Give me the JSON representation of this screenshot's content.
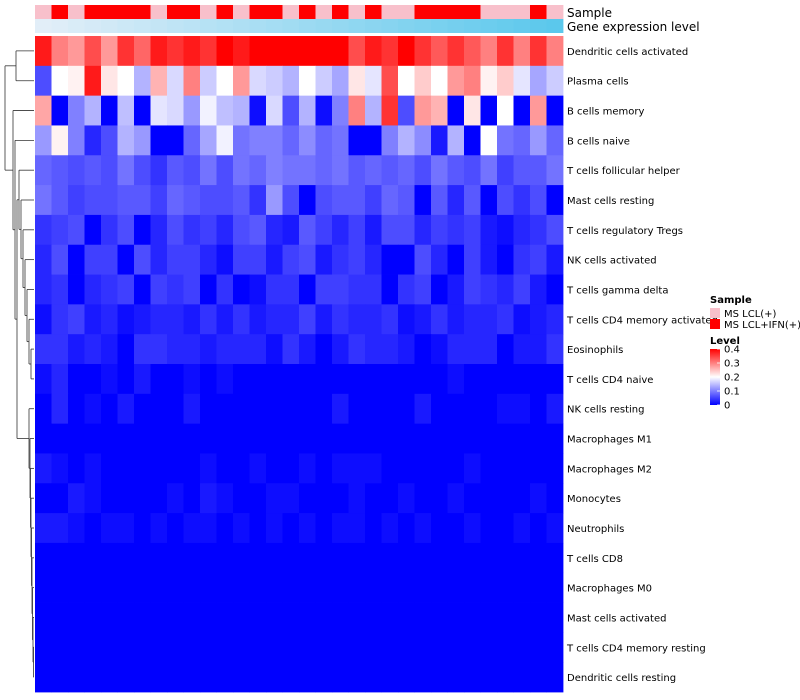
{
  "chart_data": {
    "type": "heatmap",
    "title": "",
    "annotation_tracks": [
      {
        "name": "Sample"
      },
      {
        "name": "Gene expression level"
      }
    ],
    "rows": [
      "Dendritic cells activated",
      "Plasma cells",
      "B cells memory",
      "B cells naive",
      "T cells follicular helper",
      "Mast cells resting",
      "T cells regulatory  Tregs",
      "NK cells activated",
      "T cells gamma delta",
      "T cells CD4 memory activated",
      "Eosinophils",
      "T cells CD4 naive",
      "NK cells resting",
      "Macrophages M1",
      "Macrophages M2",
      "Monocytes",
      "Neutrophils",
      "T cells CD8",
      "Macrophages M0",
      "Mast cells activated",
      "T cells CD4 memory resting",
      "Dendritic cells resting"
    ],
    "sample_groups": [
      0,
      1,
      0,
      1,
      1,
      1,
      1,
      0,
      1,
      1,
      0,
      1,
      0,
      1,
      1,
      0,
      1,
      0,
      1,
      0,
      1,
      0,
      0,
      1,
      1,
      1,
      1,
      0,
      0,
      0,
      1,
      0
    ],
    "values": [
      [
        0.38,
        0.3,
        0.28,
        0.34,
        0.28,
        0.36,
        0.32,
        0.38,
        0.36,
        0.38,
        0.36,
        0.4,
        0.38,
        0.4,
        0.4,
        0.4,
        0.4,
        0.4,
        0.4,
        0.34,
        0.38,
        0.36,
        0.4,
        0.36,
        0.33,
        0.36,
        0.33,
        0.3,
        0.36,
        0.3,
        0.36,
        0.3
      ],
      [
        0.06,
        0.2,
        0.21,
        0.38,
        0.22,
        0.2,
        0.14,
        0.26,
        0.17,
        0.3,
        0.16,
        0.2,
        0.28,
        0.17,
        0.16,
        0.14,
        0.2,
        0.16,
        0.13,
        0.22,
        0.18,
        0.34,
        0.2,
        0.24,
        0.2,
        0.28,
        0.3,
        0.21,
        0.24,
        0.18,
        0.13,
        0.16
      ],
      [
        0.27,
        0.0,
        0.1,
        0.14,
        0.0,
        0.15,
        0.0,
        0.18,
        0.17,
        0.12,
        0.19,
        0.15,
        0.14,
        0.01,
        0.17,
        0.06,
        0.14,
        0.01,
        0.1,
        0.3,
        0.14,
        0.36,
        0.06,
        0.28,
        0.26,
        0.0,
        0.22,
        0.0,
        0.2,
        0.0,
        0.28,
        0.0
      ],
      [
        0.12,
        0.21,
        0.1,
        0.03,
        0.06,
        0.14,
        0.12,
        0.0,
        0.0,
        0.08,
        0.13,
        0.19,
        0.09,
        0.1,
        0.1,
        0.08,
        0.11,
        0.08,
        0.09,
        0.0,
        0.0,
        0.1,
        0.14,
        0.11,
        0.02,
        0.14,
        0.0,
        0.2,
        0.09,
        0.08,
        0.12,
        0.08
      ],
      [
        0.08,
        0.07,
        0.06,
        0.07,
        0.06,
        0.09,
        0.06,
        0.04,
        0.07,
        0.06,
        0.09,
        0.06,
        0.09,
        0.08,
        0.1,
        0.09,
        0.09,
        0.08,
        0.09,
        0.07,
        0.08,
        0.07,
        0.08,
        0.06,
        0.09,
        0.07,
        0.06,
        0.09,
        0.05,
        0.07,
        0.07,
        0.09
      ],
      [
        0.09,
        0.07,
        0.05,
        0.06,
        0.06,
        0.07,
        0.07,
        0.05,
        0.08,
        0.07,
        0.06,
        0.06,
        0.07,
        0.04,
        0.12,
        0.06,
        0.0,
        0.06,
        0.07,
        0.07,
        0.05,
        0.08,
        0.07,
        0.0,
        0.07,
        0.03,
        0.07,
        0.0,
        0.06,
        0.04,
        0.06,
        0.0
      ],
      [
        0.04,
        0.05,
        0.06,
        0.0,
        0.04,
        0.06,
        0.0,
        0.03,
        0.06,
        0.04,
        0.05,
        0.03,
        0.06,
        0.07,
        0.03,
        0.02,
        0.07,
        0.05,
        0.03,
        0.05,
        0.02,
        0.06,
        0.06,
        0.03,
        0.05,
        0.04,
        0.05,
        0.02,
        0.01,
        0.03,
        0.04,
        0.06
      ],
      [
        0.03,
        0.06,
        0.0,
        0.05,
        0.05,
        0.0,
        0.06,
        0.03,
        0.05,
        0.05,
        0.03,
        0.01,
        0.05,
        0.05,
        0.02,
        0.05,
        0.06,
        0.02,
        0.04,
        0.05,
        0.03,
        0.0,
        0.0,
        0.06,
        0.03,
        0.0,
        0.05,
        0.02,
        0.0,
        0.04,
        0.05,
        0.02
      ],
      [
        0.03,
        0.04,
        0.0,
        0.03,
        0.04,
        0.05,
        0.0,
        0.05,
        0.04,
        0.05,
        0.0,
        0.04,
        0.0,
        0.01,
        0.04,
        0.04,
        0.0,
        0.05,
        0.05,
        0.04,
        0.04,
        0.0,
        0.04,
        0.05,
        0.0,
        0.02,
        0.05,
        0.04,
        0.03,
        0.05,
        0.02,
        0.0
      ],
      [
        0.01,
        0.04,
        0.05,
        0.02,
        0.03,
        0.01,
        0.02,
        0.03,
        0.03,
        0.02,
        0.04,
        0.02,
        0.04,
        0.02,
        0.03,
        0.03,
        0.05,
        0.02,
        0.04,
        0.03,
        0.03,
        0.04,
        0.01,
        0.02,
        0.04,
        0.02,
        0.03,
        0.03,
        0.04,
        0.01,
        0.02,
        0.03
      ],
      [
        0.04,
        0.04,
        0.02,
        0.03,
        0.02,
        0.0,
        0.04,
        0.04,
        0.03,
        0.03,
        0.02,
        0.03,
        0.03,
        0.03,
        0.01,
        0.04,
        0.02,
        0.0,
        0.02,
        0.04,
        0.03,
        0.03,
        0.02,
        0.0,
        0.01,
        0.03,
        0.03,
        0.03,
        0.0,
        0.02,
        0.02,
        0.04
      ],
      [
        0.01,
        0.03,
        0.0,
        0.0,
        0.01,
        0.0,
        0.02,
        0.0,
        0.0,
        0.01,
        0.0,
        0.01,
        0.0,
        0.0,
        0.0,
        0.0,
        0.0,
        0.0,
        0.0,
        0.0,
        0.0,
        0.0,
        0.0,
        0.0,
        0.0,
        0.01,
        0.0,
        0.0,
        0.0,
        0.0,
        0.0,
        0.0
      ],
      [
        0.0,
        0.03,
        0.0,
        0.01,
        0.0,
        0.02,
        0.0,
        0.0,
        0.0,
        0.02,
        0.0,
        0.0,
        0.0,
        0.0,
        0.0,
        0.0,
        0.0,
        0.0,
        0.02,
        0.0,
        0.0,
        0.0,
        0.0,
        0.02,
        0.0,
        0.0,
        0.0,
        0.0,
        0.01,
        0.01,
        0.0,
        0.02
      ],
      [
        0.0,
        0.0,
        0.0,
        0.0,
        0.0,
        0.0,
        0.0,
        0.0,
        0.0,
        0.0,
        0.0,
        0.0,
        0.0,
        0.0,
        0.0,
        0.0,
        0.0,
        0.0,
        0.0,
        0.0,
        0.0,
        0.0,
        0.0,
        0.0,
        0.0,
        0.0,
        0.0,
        0.0,
        0.0,
        0.0,
        0.0,
        0.0
      ],
      [
        0.02,
        0.01,
        0.0,
        0.01,
        0.0,
        0.0,
        0.0,
        0.0,
        0.0,
        0.0,
        0.01,
        0.0,
        0.0,
        0.01,
        0.0,
        0.0,
        0.01,
        0.0,
        0.01,
        0.01,
        0.01,
        0.0,
        0.0,
        0.0,
        0.0,
        0.0,
        0.01,
        0.0,
        0.0,
        0.0,
        0.0,
        0.0
      ],
      [
        0.0,
        0.0,
        0.02,
        0.01,
        0.0,
        0.0,
        0.0,
        0.0,
        0.01,
        0.0,
        0.02,
        0.01,
        0.0,
        0.0,
        0.01,
        0.01,
        0.0,
        0.0,
        0.0,
        0.01,
        0.0,
        0.0,
        0.01,
        0.0,
        0.0,
        0.01,
        0.0,
        0.0,
        0.0,
        0.0,
        0.01,
        0.0
      ],
      [
        0.02,
        0.02,
        0.01,
        0.0,
        0.01,
        0.01,
        0.0,
        0.01,
        0.0,
        0.01,
        0.01,
        0.0,
        0.01,
        0.0,
        0.01,
        0.0,
        0.01,
        0.0,
        0.01,
        0.01,
        0.0,
        0.01,
        0.0,
        0.01,
        0.0,
        0.0,
        0.01,
        0.0,
        0.0,
        0.01,
        0.0,
        0.01
      ],
      [
        0.0,
        0.0,
        0.0,
        0.0,
        0.0,
        0.0,
        0.0,
        0.0,
        0.0,
        0.0,
        0.0,
        0.0,
        0.0,
        0.0,
        0.0,
        0.0,
        0.0,
        0.0,
        0.0,
        0.0,
        0.0,
        0.0,
        0.0,
        0.0,
        0.0,
        0.0,
        0.0,
        0.0,
        0.0,
        0.0,
        0.0,
        0.0
      ],
      [
        0.0,
        0.0,
        0.0,
        0.0,
        0.0,
        0.0,
        0.0,
        0.0,
        0.0,
        0.0,
        0.0,
        0.0,
        0.0,
        0.0,
        0.0,
        0.0,
        0.0,
        0.0,
        0.0,
        0.0,
        0.0,
        0.0,
        0.0,
        0.0,
        0.0,
        0.0,
        0.0,
        0.0,
        0.0,
        0.0,
        0.0,
        0.0
      ],
      [
        0.0,
        0.0,
        0.0,
        0.0,
        0.0,
        0.0,
        0.0,
        0.0,
        0.0,
        0.0,
        0.0,
        0.0,
        0.0,
        0.0,
        0.0,
        0.0,
        0.0,
        0.0,
        0.0,
        0.0,
        0.0,
        0.0,
        0.0,
        0.0,
        0.0,
        0.0,
        0.0,
        0.0,
        0.0,
        0.0,
        0.0,
        0.0
      ],
      [
        0.0,
        0.0,
        0.0,
        0.0,
        0.0,
        0.0,
        0.0,
        0.0,
        0.0,
        0.0,
        0.0,
        0.0,
        0.0,
        0.0,
        0.0,
        0.0,
        0.0,
        0.0,
        0.0,
        0.0,
        0.0,
        0.0,
        0.0,
        0.0,
        0.0,
        0.0,
        0.0,
        0.0,
        0.0,
        0.0,
        0.0,
        0.0
      ],
      [
        0.0,
        0.0,
        0.0,
        0.0,
        0.0,
        0.0,
        0.0,
        0.0,
        0.0,
        0.0,
        0.0,
        0.0,
        0.0,
        0.0,
        0.0,
        0.0,
        0.0,
        0.0,
        0.0,
        0.0,
        0.0,
        0.0,
        0.0,
        0.0,
        0.0,
        0.0,
        0.0,
        0.0,
        0.0,
        0.0,
        0.0,
        0.0
      ]
    ],
    "legend": {
      "position": "right",
      "sample": {
        "title": "Sample",
        "entries": [
          {
            "label": "MS LCL(+)",
            "color": "#f8c0cb"
          },
          {
            "label": "MS LCL+IFN(+)",
            "color": "#ff0000"
          }
        ]
      },
      "level": {
        "title": "Level",
        "ticks": [
          {
            "value": 0.4,
            "label": "0.4"
          },
          {
            "value": 0.3,
            "label": "0.3"
          },
          {
            "value": 0.2,
            "label": "0.2"
          },
          {
            "value": 0.1,
            "label": "0.1"
          },
          {
            "value": 0,
            "label": "0"
          }
        ]
      }
    },
    "colors": {
      "low": "#0000ff",
      "mid": "#ffffff",
      "high": "#ff0000",
      "expression_track": "#5bc8ec",
      "dendrogram": "#333333"
    },
    "value_range": [
      0,
      0.4
    ]
  }
}
